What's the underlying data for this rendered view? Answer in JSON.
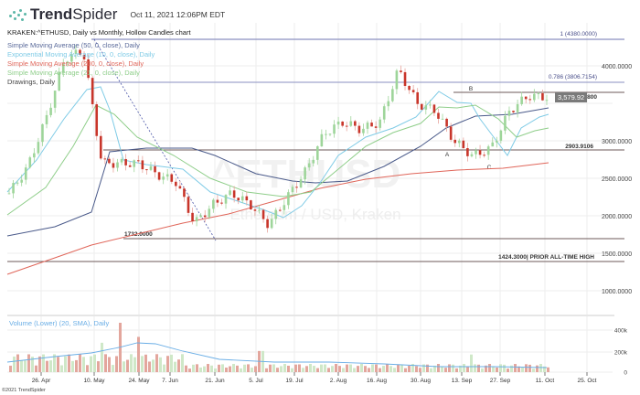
{
  "header": {
    "brand_bold": "Trend",
    "brand_light": "Spider",
    "timestamp": "Oct 11, 2021 12:06PM EDT",
    "chart_title": "KRAKEN:^ETHUSD, Daily vs Monthly, Hollow Candles chart"
  },
  "legend": [
    {
      "label": "Simple Moving Average (50, 0, close), Daily",
      "color": "#5a6a9a"
    },
    {
      "label": "Exponential Moving Average (10, 0, close), Daily",
      "color": "#7fcbe6"
    },
    {
      "label": "Simple Moving Average (200, 0, close), Daily",
      "color": "#e0665a"
    },
    {
      "label": "Simple Moving Average (21, 0, close), Daily",
      "color": "#8fce8a"
    },
    {
      "label": "Drawings, Daily",
      "color": "#444444"
    }
  ],
  "watermark": {
    "symbol": "^ETHUSD",
    "subtitle": "Ethereum / USD, Kraken"
  },
  "annotations": {
    "fib_1": "1 (4380.0000)",
    "fib_786": "0.786 (3806.7154)",
    "level_b": "3674.3800",
    "level_mid": "2903.9106",
    "level_low": "1732.0000",
    "level_ath": "1424.3000| PRIOR ALL-TIME HIGH",
    "point_a": "A",
    "point_b": "B",
    "point_c": "C"
  },
  "current_price": "3,579.92",
  "volume_label": "Volume (Lower) (20, SMA), Daily",
  "copyright": "©2021 TrendSpider",
  "colors": {
    "up": "#9ed59a",
    "down": "#c8352a",
    "down_light": "#e8a49c",
    "grid": "#eeeeee",
    "fib": "#8a8fc0",
    "level": "#6e5a5a"
  },
  "chart_data": {
    "type": "candlestick",
    "title": "KRAKEN:^ETHUSD, Daily vs Monthly, Hollow Candles chart",
    "xlabel": "",
    "ylabel": "Price (USD)",
    "ylim": [
      700,
      4450
    ],
    "y_ticks": [
      1000,
      1500,
      2000,
      2500,
      3000,
      3500,
      4000
    ],
    "y_tick_labels": [
      "1000.0000",
      "1500.0000",
      "2000.0000",
      "2500.0000",
      "3000.0000",
      "3500.0000",
      "4000.0000"
    ],
    "x_tick_labels": [
      "26. Apr",
      "10. May",
      "24. May",
      "7. Jun",
      "21. Jun",
      "5. Jul",
      "19. Jul",
      "2. Aug",
      "16. Aug",
      "30. Aug",
      "13. Sep",
      "27. Sep",
      "11. Oct",
      "25. Oct"
    ],
    "horizontal_levels": [
      {
        "label": "1 (4380.0000)",
        "value": 4380.0
      },
      {
        "label": "0.786 (3806.7154)",
        "value": 3806.7154
      },
      {
        "label": "3674.3800",
        "value": 3674.38
      },
      {
        "label": "2903.9106",
        "value": 2903.9106
      },
      {
        "label": "1732.0000",
        "value": 1732.0
      },
      {
        "label": "1424.3000 | PRIOR ALL-TIME HIGH",
        "value": 1424.3
      }
    ],
    "last_price": 3579.92,
    "approx_close_series": {
      "x": [
        "Apr 15",
        "Apr 26",
        "May 3",
        "May 10",
        "May 12",
        "May 19",
        "May 24",
        "Jun 1",
        "Jun 7",
        "Jun 14",
        "Jun 21",
        "Jun 28",
        "Jul 5",
        "Jul 12",
        "Jul 19",
        "Jul 26",
        "Aug 2",
        "Aug 9",
        "Aug 16",
        "Aug 23",
        "Aug 30",
        "Sep 3",
        "Sep 7",
        "Sep 13",
        "Sep 20",
        "Sep 22",
        "Sep 28",
        "Oct 4",
        "Oct 8",
        "Oct 11"
      ],
      "values": [
        2300,
        2650,
        3300,
        4100,
        4200,
        2700,
        2700,
        2700,
        2550,
        2450,
        1900,
        2150,
        2300,
        2150,
        1880,
        2250,
        2600,
        3100,
        3250,
        3150,
        3250,
        3950,
        3500,
        3400,
        3000,
        2800,
        2900,
        3400,
        3600,
        3580
      ]
    },
    "series": [
      {
        "name": "SMA 50",
        "values_note": "slow line, ~2100 Apr rising to ~2950 Jun, falling to ~2050 Jul, rising to ~3300 Oct"
      },
      {
        "name": "EMA 10",
        "values_note": "tracks price closely"
      },
      {
        "name": "SMA 200",
        "values_note": "~1350 Apr rising steadily to ~2700 Oct"
      },
      {
        "name": "SMA 21",
        "values_note": "intermediate"
      }
    ],
    "volume": {
      "ylim": [
        0,
        450000
      ],
      "y_tick_labels": [
        "0",
        "200k",
        "400k"
      ],
      "peak": 420000,
      "typical": 60000
    }
  }
}
